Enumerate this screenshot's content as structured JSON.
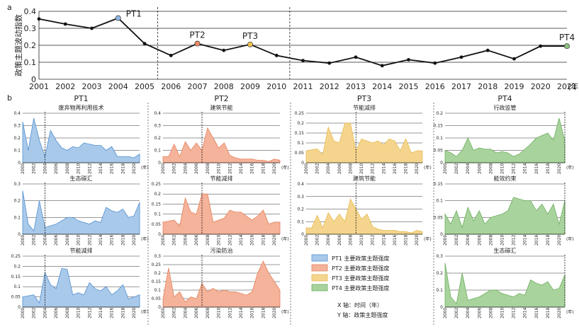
{
  "panel_a": {
    "label": "a",
    "ylabel": "政策主题波动指数",
    "year_unit": "(年)",
    "chart_data": {
      "type": "line",
      "x": [
        2001,
        2002,
        2003,
        2004,
        2005,
        2006,
        2007,
        2008,
        2009,
        2010,
        2011,
        2012,
        2013,
        2014,
        2015,
        2016,
        2017,
        2018,
        2019,
        2020,
        2021
      ],
      "values": [
        0.355,
        0.325,
        0.3,
        0.36,
        0.21,
        0.14,
        0.21,
        0.17,
        0.205,
        0.14,
        0.11,
        0.095,
        0.13,
        0.08,
        0.115,
        0.095,
        0.13,
        0.17,
        0.12,
        0.195,
        0.195
      ],
      "ylim": [
        0,
        0.4
      ],
      "yticks": [
        0,
        0.1,
        0.2,
        0.3,
        0.4
      ],
      "grid": "horizontal",
      "dividers": [
        2005.5,
        2010.5
      ],
      "points": [
        {
          "label": "PT1",
          "x": 2004,
          "y": 0.36,
          "color": "#8fb9e6"
        },
        {
          "label": "PT2",
          "x": 2007,
          "y": 0.21,
          "color": "#ee8a63"
        },
        {
          "label": "PT3",
          "x": 2009,
          "y": 0.205,
          "color": "#f1c34e"
        },
        {
          "label": "PT4",
          "x": 2021,
          "y": 0.195,
          "color": "#8cc37f"
        }
      ]
    }
  },
  "panel_b": {
    "label": "b",
    "year_unit": "(年)",
    "xticks": [
      "2000",
      "2002",
      "2004",
      "2006",
      "2008",
      "2010",
      "2012",
      "2014",
      "2016",
      "2018",
      "2020"
    ],
    "colors": {
      "PT1": {
        "fill": "#a9c9ea",
        "stroke": "#4f8fd1"
      },
      "PT2": {
        "fill": "#f4b39a",
        "stroke": "#e4825d"
      },
      "PT3": {
        "fill": "#f5d58e",
        "stroke": "#e6ba50"
      },
      "PT4": {
        "fill": "#a9d39d",
        "stroke": "#6cae5e"
      }
    },
    "columns": [
      {
        "title": "PT1",
        "charts": [
          {
            "type": "area",
            "title": "废弃物再利用技术",
            "ylim": [
              0,
              0.4
            ],
            "yticks": [
              "0",
              "0.1",
              "0.2",
              "0.3",
              "0.4"
            ],
            "marker": 2004,
            "values": [
              0.33,
              0.1,
              0.36,
              0.18,
              0.05,
              0.26,
              0.18,
              0.12,
              0.1,
              0.13,
              0.12,
              0.16,
              0.15,
              0.14,
              0.14,
              0.1,
              0.13,
              0.05,
              0.05,
              0.05,
              0.04,
              0.07
            ]
          },
          {
            "type": "area",
            "title": "生态碳汇",
            "ylim": [
              0,
              0.3
            ],
            "yticks": [
              "0",
              "0.1",
              "0.2",
              "0.3"
            ],
            "marker": 2004,
            "values": [
              0.26,
              0.06,
              0.02,
              0.2,
              0.04,
              0.05,
              0.06,
              0.08,
              0.1,
              0.1,
              0.08,
              0.07,
              0.06,
              0.08,
              0.07,
              0.16,
              0.14,
              0.13,
              0.15,
              0.1,
              0.11,
              0.19
            ]
          },
          {
            "type": "area",
            "title": "节能减排",
            "ylim": [
              0,
              0.25
            ],
            "yticks": [
              "0",
              "0.05",
              "0.1",
              "0.15",
              "0.2",
              "0.25"
            ],
            "marker": 2004,
            "values": [
              0.05,
              0.055,
              0.06,
              0.02,
              0.17,
              0.11,
              0.09,
              0.19,
              0.185,
              0.06,
              0.07,
              0.06,
              0.12,
              0.09,
              0.08,
              0.1,
              0.06,
              0.08,
              0.11,
              0.04,
              0.05,
              0.06
            ]
          }
        ]
      },
      {
        "title": "PT2",
        "charts": [
          {
            "type": "area",
            "title": "建筑节能",
            "ylim": [
              0,
              0.4
            ],
            "yticks": [
              "0",
              "0.1",
              "0.2",
              "0.3",
              "0.4"
            ],
            "marker": 2007,
            "values": [
              0.05,
              0.05,
              0.15,
              0.05,
              0.17,
              0.1,
              0.16,
              0.1,
              0.28,
              0.2,
              0.12,
              0.16,
              0.06,
              0.04,
              0.03,
              0.03,
              0.03,
              0.02,
              0.02,
              0.01,
              0.03,
              0.02
            ]
          },
          {
            "type": "area",
            "title": "节能减排",
            "ylim": [
              0,
              0.25
            ],
            "yticks": [
              "0",
              "0.05",
              "0.1",
              "0.15",
              "0.2",
              "0.25"
            ],
            "marker": 2007,
            "values": [
              0.06,
              0.065,
              0.07,
              0.04,
              0.18,
              0.11,
              0.1,
              0.2,
              0.2,
              0.06,
              0.07,
              0.08,
              0.12,
              0.11,
              0.11,
              0.09,
              0.07,
              0.09,
              0.12,
              0.05,
              0.06,
              0.06
            ]
          },
          {
            "type": "area",
            "title": "污染防治",
            "ylim": [
              0,
              0.3
            ],
            "yticks": [
              "0",
              "0.05",
              "0.1",
              "0.15",
              "0.2",
              "0.25",
              "0.3"
            ],
            "marker": 2007,
            "values": [
              0.05,
              0.23,
              0.06,
              0.09,
              0.03,
              0.06,
              0.05,
              0.14,
              0.09,
              0.11,
              0.09,
              0.1,
              0.09,
              0.09,
              0.08,
              0.07,
              0.09,
              0.2,
              0.27,
              0.2,
              0.15,
              0.1
            ]
          }
        ]
      },
      {
        "title": "PT3",
        "charts": [
          {
            "type": "area",
            "title": "节能减排",
            "ylim": [
              0,
              0.25
            ],
            "yticks": [
              "0",
              "0.05",
              "0.1",
              "0.15",
              "0.2",
              "0.25"
            ],
            "marker": 2009,
            "values": [
              0.06,
              0.065,
              0.07,
              0.04,
              0.18,
              0.11,
              0.1,
              0.2,
              0.2,
              0.06,
              0.12,
              0.11,
              0.1,
              0.11,
              0.09,
              0.12,
              0.11,
              0.06,
              0.12,
              0.05,
              0.06,
              0.06
            ]
          },
          {
            "type": "area",
            "title": "建筑节能",
            "ylim": [
              0,
              0.4
            ],
            "yticks": [
              "0",
              "0.1",
              "0.2",
              "0.3",
              "0.4"
            ],
            "marker": 2009,
            "values": [
              0.05,
              0.05,
              0.15,
              0.05,
              0.17,
              0.1,
              0.16,
              0.1,
              0.28,
              0.2,
              0.12,
              0.16,
              0.06,
              0.04,
              0.03,
              0.03,
              0.03,
              0.02,
              0.02,
              0.01,
              0.03,
              0.02
            ]
          }
        ]
      },
      {
        "title": "PT4",
        "charts": [
          {
            "type": "area",
            "title": "行政监管",
            "ylim": [
              0,
              0.2
            ],
            "yticks": [
              "0",
              "0.05",
              "0.1",
              "0.15",
              "0.2"
            ],
            "marker": 2021,
            "values": [
              0.05,
              0.04,
              0.025,
              0.05,
              0.1,
              0.05,
              0.06,
              0.055,
              0.055,
              0.04,
              0.045,
              0.04,
              0.025,
              0.035,
              0.055,
              0.075,
              0.1,
              0.11,
              0.12,
              0.09,
              0.18,
              0.09
            ]
          },
          {
            "type": "area",
            "title": "能效约束",
            "ylim": [
              0,
              0.15
            ],
            "yticks": [
              "0",
              "0.05",
              "0.1",
              "0.15"
            ],
            "marker": 2021,
            "values": [
              0.06,
              0.03,
              0.07,
              0.02,
              0.08,
              0.04,
              0.07,
              0.03,
              0.05,
              0.055,
              0.06,
              0.07,
              0.11,
              0.105,
              0.1,
              0.1,
              0.07,
              0.09,
              0.06,
              0.09,
              0.03,
              0.1
            ]
          },
          {
            "type": "area",
            "title": "生态碳汇",
            "ylim": [
              0,
              0.3
            ],
            "yticks": [
              "0",
              "0.1",
              "0.2",
              "0.3"
            ],
            "marker": 2021,
            "values": [
              0.26,
              0.06,
              0.02,
              0.2,
              0.04,
              0.05,
              0.06,
              0.08,
              0.1,
              0.1,
              0.08,
              0.07,
              0.06,
              0.08,
              0.07,
              0.16,
              0.14,
              0.13,
              0.15,
              0.1,
              0.11,
              0.19
            ]
          }
        ]
      }
    ],
    "legend": [
      {
        "key": "PT1",
        "label": "PT1 主要政策主题强度"
      },
      {
        "key": "PT2",
        "label": "PT2 主要政策主题强度"
      },
      {
        "key": "PT3",
        "label": "PT3 主要政策主题强度"
      },
      {
        "key": "PT4",
        "label": "PT4 主要政策主题强度"
      }
    ],
    "axis_notes": [
      "X 轴：时间（年）",
      "Y 轴：政策主题强度"
    ]
  }
}
